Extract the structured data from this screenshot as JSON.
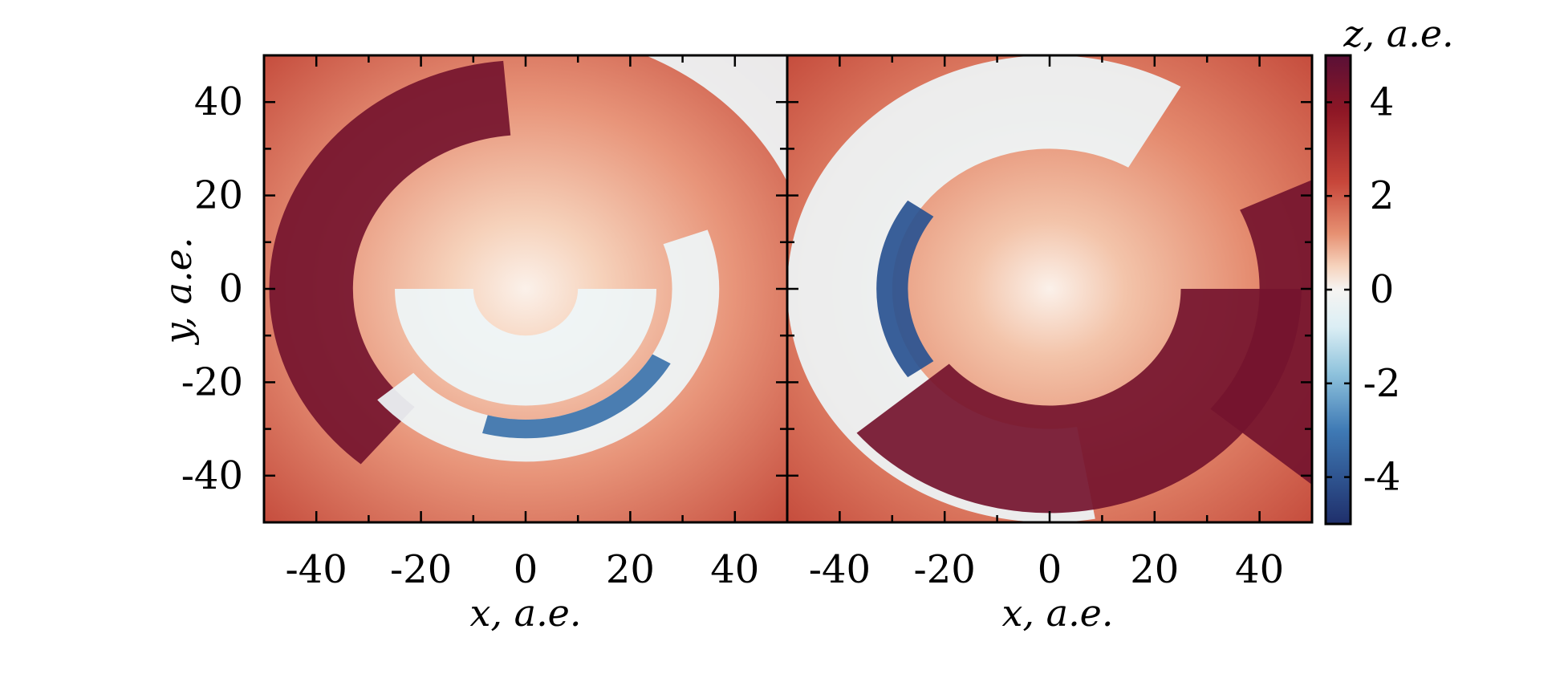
{
  "chart_data": [
    {
      "type": "heatmap",
      "panel": "left",
      "xlabel": "x, a.e.",
      "ylabel": "y, a.e.",
      "xlim": [
        -50,
        50
      ],
      "ylim": [
        -50,
        50
      ],
      "xticks": [
        -40,
        -20,
        0,
        20,
        40
      ],
      "yticks": [
        -40,
        -20,
        0,
        20,
        40
      ],
      "xticklabels": [
        "-40",
        "-20",
        "0",
        "20",
        "40"
      ],
      "yticklabels": [
        "-40",
        "-20",
        "0",
        "20",
        "40"
      ],
      "description_values": {
        "background_outer_z": 3,
        "center_z": 0,
        "arcs": [
          {
            "name": "outer-dark-arm",
            "z": 4.5,
            "r": [
              33,
              49
            ],
            "angle_deg": [
              95,
              230
            ]
          },
          {
            "name": "white-band",
            "z": 0,
            "r": [
              28,
              37
            ],
            "angle_deg": [
              220,
              380
            ]
          },
          {
            "name": "blue-patch",
            "z": -2.5,
            "r": [
              28,
              32
            ],
            "angle_deg": [
              255,
              330
            ]
          },
          {
            "name": "inner-white-arcs",
            "z": 0,
            "r": [
              10,
              25
            ],
            "angle_deg": [
              180,
              360
            ]
          },
          {
            "name": "top-right-white",
            "z": 0,
            "r": [
              55,
              80
            ],
            "angle_deg": [
              20,
              75
            ]
          }
        ]
      }
    },
    {
      "type": "heatmap",
      "panel": "right",
      "xlabel": "x, a.e.",
      "xlim": [
        -50,
        50
      ],
      "ylim": [
        -50,
        50
      ],
      "xticks": [
        -40,
        -20,
        0,
        20,
        40
      ],
      "xticklabels": [
        "-40",
        "-20",
        "0",
        "20",
        "40"
      ],
      "description_values": {
        "background_outer_z": 3,
        "center_z": 0,
        "arcs": [
          {
            "name": "white-crescent",
            "z": 0,
            "r": [
              30,
              50
            ],
            "angle_deg": [
              60,
              280
            ]
          },
          {
            "name": "blue-arm",
            "z": -3.5,
            "r": [
              27,
              33
            ],
            "angle_deg": [
              145,
              215
            ]
          },
          {
            "name": "dark-lower-arm",
            "z": 4.5,
            "r": [
              25,
              48
            ],
            "angle_deg": [
              220,
              360
            ]
          },
          {
            "name": "right-dark-edge",
            "z": 4.5,
            "r": [
              40,
              70
            ],
            "angle_deg": [
              -40,
              25
            ]
          }
        ]
      }
    }
  ],
  "colorbar": {
    "title": "z, a.e.",
    "min": -5,
    "max": 5,
    "ticks": [
      4,
      2,
      0,
      -2,
      -4
    ],
    "ticklabels": [
      "4",
      "2",
      "0",
      "-2",
      "-4"
    ],
    "colors": [
      "#1f2f6b",
      "#2c5f9e",
      "#5d9cc6",
      "#a8d3e3",
      "#eef6f8",
      "#f6d3bd",
      "#e69072",
      "#c7463a",
      "#8e1725",
      "#5a1036"
    ]
  }
}
